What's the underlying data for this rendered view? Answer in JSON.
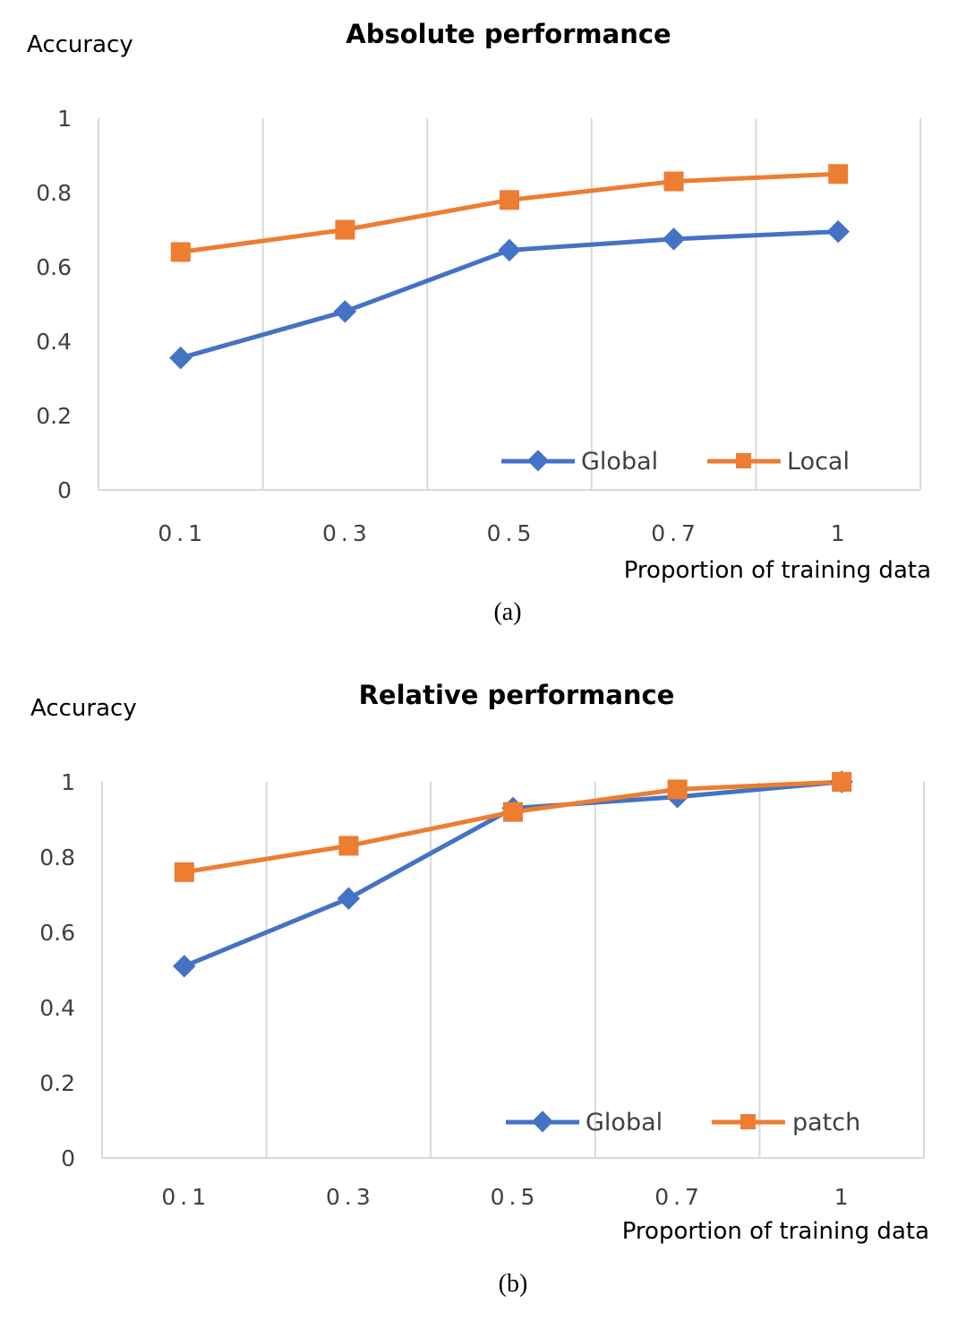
{
  "chart_data": [
    {
      "type": "line",
      "title": "Absolute performance",
      "ylabel": "Accuracy",
      "xlabel": "Proportion of training data",
      "categories": [
        "0.1",
        "0.3",
        "0.5",
        "0.7",
        "1"
      ],
      "ylim": [
        0,
        1
      ],
      "yticks": [
        "0",
        "0.2",
        "0.4",
        "0.6",
        "0.8",
        "1"
      ],
      "series": [
        {
          "name": "Global",
          "values": [
            0.355,
            0.48,
            0.645,
            0.675,
            0.695
          ],
          "color": "#4472C4",
          "marker": "diamond"
        },
        {
          "name": "Local",
          "values": [
            0.64,
            0.7,
            0.78,
            0.83,
            0.85
          ],
          "color": "#ED7D31",
          "marker": "square"
        }
      ],
      "legend_position": "bottom-right",
      "grid": "vertical",
      "caption": "(a)"
    },
    {
      "type": "line",
      "title": "Relative performance",
      "ylabel": "Accuracy",
      "xlabel": "Proportion of training data",
      "categories": [
        "0.1",
        "0.3",
        "0.5",
        "0.7",
        "1"
      ],
      "ylim": [
        0,
        1
      ],
      "yticks": [
        "0",
        "0.2",
        "0.4",
        "0.6",
        "0.8",
        "1"
      ],
      "series": [
        {
          "name": "Global",
          "values": [
            0.51,
            0.69,
            0.93,
            0.96,
            1.0
          ],
          "color": "#4472C4",
          "marker": "diamond"
        },
        {
          "name": "patch",
          "values": [
            0.76,
            0.83,
            0.92,
            0.98,
            1.0
          ],
          "color": "#ED7D31",
          "marker": "square"
        }
      ],
      "legend_position": "bottom-right",
      "grid": "vertical",
      "caption": "(b)"
    }
  ]
}
